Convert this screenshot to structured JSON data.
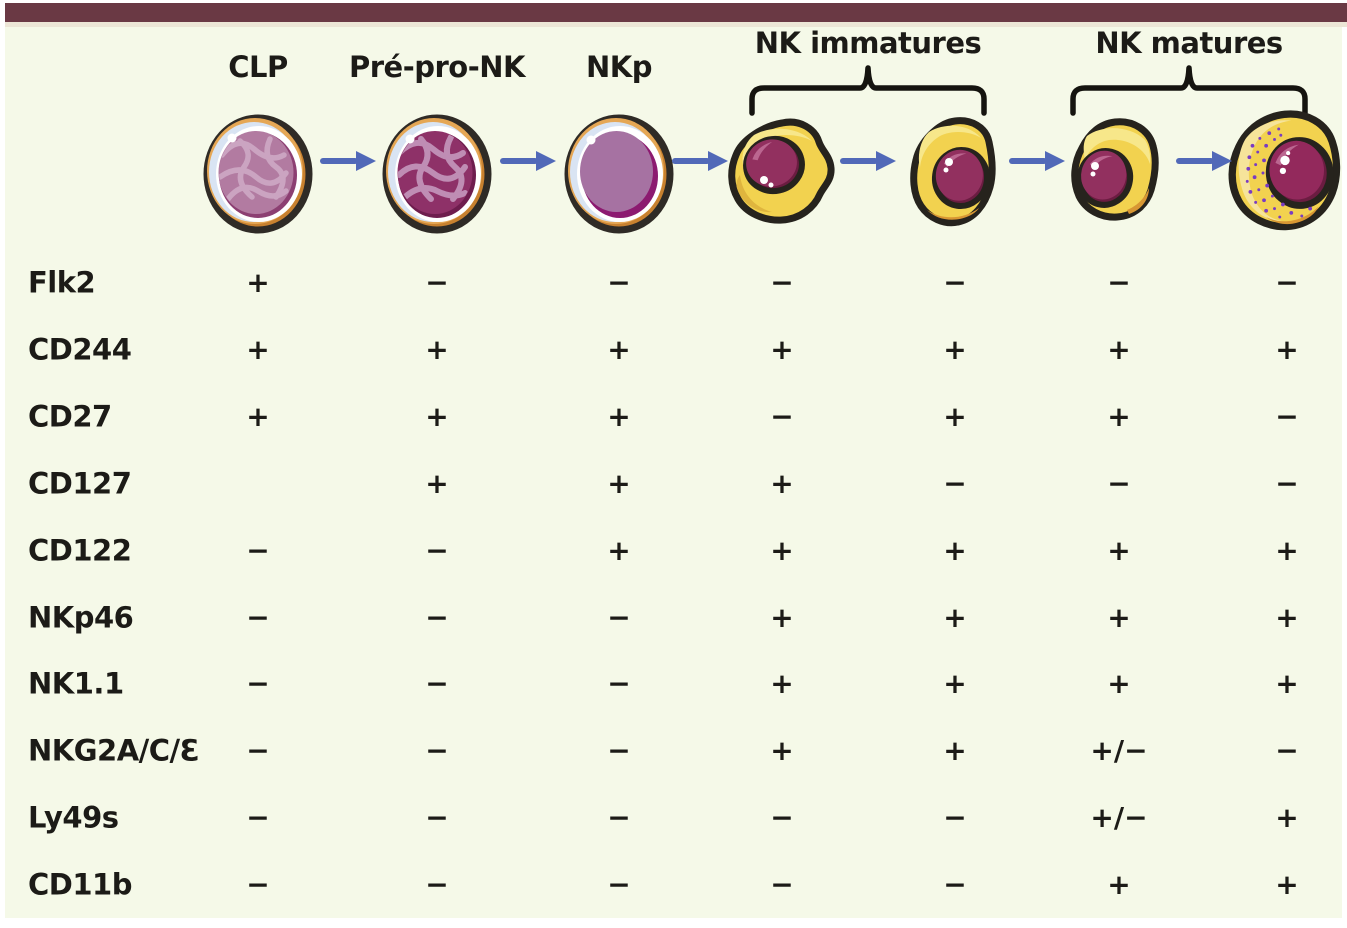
{
  "header": {
    "stage_labels": [
      "CLP",
      "Pré-pro-NK",
      "NKp"
    ],
    "group_labels": [
      "NK immatures",
      "NK matures"
    ]
  },
  "table": {
    "markers": [
      "Flk2",
      "CD244",
      "CD27",
      "CD127",
      "CD122",
      "NKp46",
      "NK1.1",
      "NKG2A/C/Ɛ",
      "Ly49s",
      "CD11b"
    ],
    "rows": [
      {
        "marker": "Flk2",
        "values": [
          "+",
          "−",
          "−",
          "−",
          "−",
          "−",
          "−"
        ]
      },
      {
        "marker": "CD244",
        "values": [
          "+",
          "+",
          "+",
          "+",
          "+",
          "+",
          "+"
        ]
      },
      {
        "marker": "CD27",
        "values": [
          "+",
          "+",
          "+",
          "−",
          "+",
          "+",
          "−"
        ]
      },
      {
        "marker": "CD127",
        "values": [
          "",
          "+",
          "+",
          "+",
          "−",
          "−",
          "−"
        ]
      },
      {
        "marker": "CD122",
        "values": [
          "−",
          "−",
          "+",
          "+",
          "+",
          "+",
          "+"
        ]
      },
      {
        "marker": "NKp46",
        "values": [
          "−",
          "−",
          "−",
          "+",
          "+",
          "+",
          "+"
        ]
      },
      {
        "marker": "NK1.1",
        "values": [
          "−",
          "−",
          "−",
          "+",
          "+",
          "+",
          "+"
        ]
      },
      {
        "marker": "NKG2A/C/Ɛ",
        "values": [
          "−",
          "−",
          "−",
          "+",
          "+",
          "+/−",
          "−"
        ]
      },
      {
        "marker": "Ly49s",
        "values": [
          "−",
          "−",
          "−",
          "−",
          "−",
          "+/−",
          "+"
        ]
      },
      {
        "marker": "CD11b",
        "values": [
          "−",
          "−",
          "−",
          "−",
          "−",
          "+",
          "+"
        ]
      }
    ]
  },
  "colors": {
    "top_bar_maroon": "#6a3944",
    "background": "#f5f9e8",
    "text": "#1c1b17",
    "arrow_blue": "#5169b8",
    "membrane_outline": "#26231d",
    "cytoplasm_yellow": "#f2d24f",
    "nucleus_purple": "#92305f",
    "progenitor_ring_orange": "#e5a755",
    "granule_violet": "#7a3cc2"
  }
}
